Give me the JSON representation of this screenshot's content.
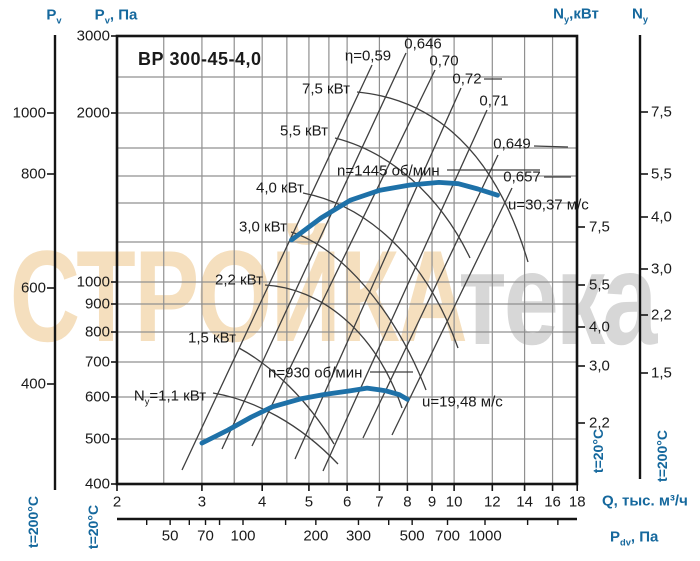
{
  "title": "ВР 300-45-4,0",
  "colors": {
    "blue": "#15689D",
    "curve": "#1E71A8",
    "grid": "#909090",
    "line": "#3F3F3F",
    "frame": "#141414",
    "watermark_orange": "#F5DFBE",
    "watermark_gray": "#D7D7D7"
  },
  "watermark": {
    "left": "СТРОЙКА",
    "right": "тека"
  },
  "headers": {
    "left_outer": {
      "base": "P",
      "sub": "v"
    },
    "left_inner": {
      "base": "P",
      "sub": "v",
      "suffix": ", Па"
    },
    "right_inner": {
      "base": "N",
      "sub": "y",
      "suffix": ",кВт"
    },
    "right_outer": {
      "base": "N",
      "sub": "y"
    }
  },
  "temp_labels": {
    "left_outer": "t=200°C",
    "left_inner": "t=20°C",
    "right_inner": "t=20°C",
    "right_outer": "t=200°C"
  },
  "bottom_axes": {
    "q_title": "Q, тыс. м³/ч",
    "pdv_title": {
      "base": "P",
      "sub": "dv",
      "suffix": ", Па"
    }
  },
  "ticks": {
    "left_outer": [
      "1000",
      "800",
      "600",
      "400"
    ],
    "left_inner": [
      "3000",
      "2000",
      "1000",
      "900",
      "800",
      "700",
      "600",
      "500",
      "400"
    ],
    "right_inner": [
      "7,5",
      "5,5",
      "4,0",
      "3,0",
      "2,2"
    ],
    "right_outer": [
      "7,5",
      "5,5",
      "4,0",
      "3,0",
      "2,2",
      "1,5"
    ],
    "q": [
      "2",
      "3",
      "4",
      "5",
      "6",
      "7",
      "8",
      "9",
      "10",
      "12",
      "14",
      "16",
      "18"
    ],
    "pdv": [
      "50",
      "70",
      "100",
      "200",
      "300",
      "500",
      "700",
      "1000"
    ]
  },
  "annotations": {
    "speed_high": "n=1445 об/мин",
    "u_high": "u=30,37 м/с",
    "speed_low": "n=930 об/мин",
    "u_low": "u=19,48 м/с",
    "eta": [
      "η=0,59",
      "0,646",
      "0,70",
      "0,72",
      "0,71",
      "0,649",
      "0,657"
    ],
    "power": [
      {
        "base": "N",
        "sub": "y",
        "label": "=1,1 кВт"
      },
      {
        "label": "1,5 кВт"
      },
      {
        "label": "2,2 кВт"
      },
      {
        "label": "3,0 кВт"
      },
      {
        "label": "4,0 кВт"
      },
      {
        "label": "5,5 кВт"
      },
      {
        "label": "7,5 кВт"
      }
    ]
  },
  "chart_data": {
    "type": "line",
    "title": "ВР 300-45-4,0",
    "x_axis": {
      "label": "Q, тыс. м³/ч",
      "scale": "log",
      "range": [
        2,
        18
      ],
      "ticks": [
        2,
        3,
        4,
        5,
        6,
        7,
        8,
        9,
        10,
        12,
        14,
        16,
        18
      ]
    },
    "y_axis_pv_t20": {
      "label": "Pv, Па",
      "scale": "log",
      "range": [
        400,
        3000
      ],
      "ticks": [
        400,
        500,
        600,
        700,
        800,
        900,
        1000,
        2000,
        3000
      ],
      "gridlines": [
        400,
        500,
        600,
        700,
        800,
        900,
        1000,
        1200,
        1400,
        1600,
        1800,
        2000,
        2500,
        3000
      ]
    },
    "y_axis_pv_t200": {
      "label": "Pv",
      "ticks": [
        400,
        600,
        800,
        1000
      ]
    },
    "y_axis_ny_t20": {
      "label": "Ny, кВт",
      "ticks": [
        2.2,
        3.0,
        4.0,
        5.5,
        7.5
      ]
    },
    "y_axis_ny_t200": {
      "label": "Ny",
      "ticks": [
        1.5,
        2.2,
        3.0,
        4.0,
        5.5,
        7.5
      ]
    },
    "x_axis_secondary": {
      "label": "Pdv, Па",
      "scale": "log",
      "ticks": [
        50,
        70,
        100,
        200,
        300,
        500,
        700,
        1000
      ],
      "minor_ticks": [
        40,
        50,
        60,
        70,
        80,
        100,
        150,
        200,
        300,
        400,
        500,
        700,
        1000,
        1500,
        2000
      ]
    },
    "series": [
      {
        "name": "n=1445 об/мин",
        "u": "u=30,37 м/с",
        "points_q_pv": [
          [
            4.6,
            1210
          ],
          [
            5.3,
            1320
          ],
          [
            6.1,
            1420
          ],
          [
            7.0,
            1490
          ],
          [
            8.1,
            1530
          ],
          [
            9.3,
            1550
          ],
          [
            10.2,
            1540
          ],
          [
            11.2,
            1500
          ],
          [
            12.3,
            1455
          ]
        ]
      },
      {
        "name": "n=930 об/мин",
        "u": "u=19,48 м/с",
        "points_q_pv": [
          [
            3.0,
            490
          ],
          [
            3.4,
            520
          ],
          [
            3.8,
            550
          ],
          [
            4.2,
            575
          ],
          [
            4.8,
            595
          ],
          [
            5.4,
            607
          ],
          [
            6.1,
            617
          ],
          [
            6.6,
            624
          ],
          [
            7.2,
            617
          ],
          [
            7.7,
            606
          ],
          [
            8.0,
            594
          ]
        ]
      }
    ],
    "efficiency_lines": [
      0.59,
      0.646,
      0.7,
      0.72,
      0.71,
      0.649,
      0.657
    ],
    "power_lines_kw": [
      1.1,
      1.5,
      2.2,
      3.0,
      4.0,
      5.5,
      7.5
    ],
    "legend_position": "none",
    "grid": true
  }
}
